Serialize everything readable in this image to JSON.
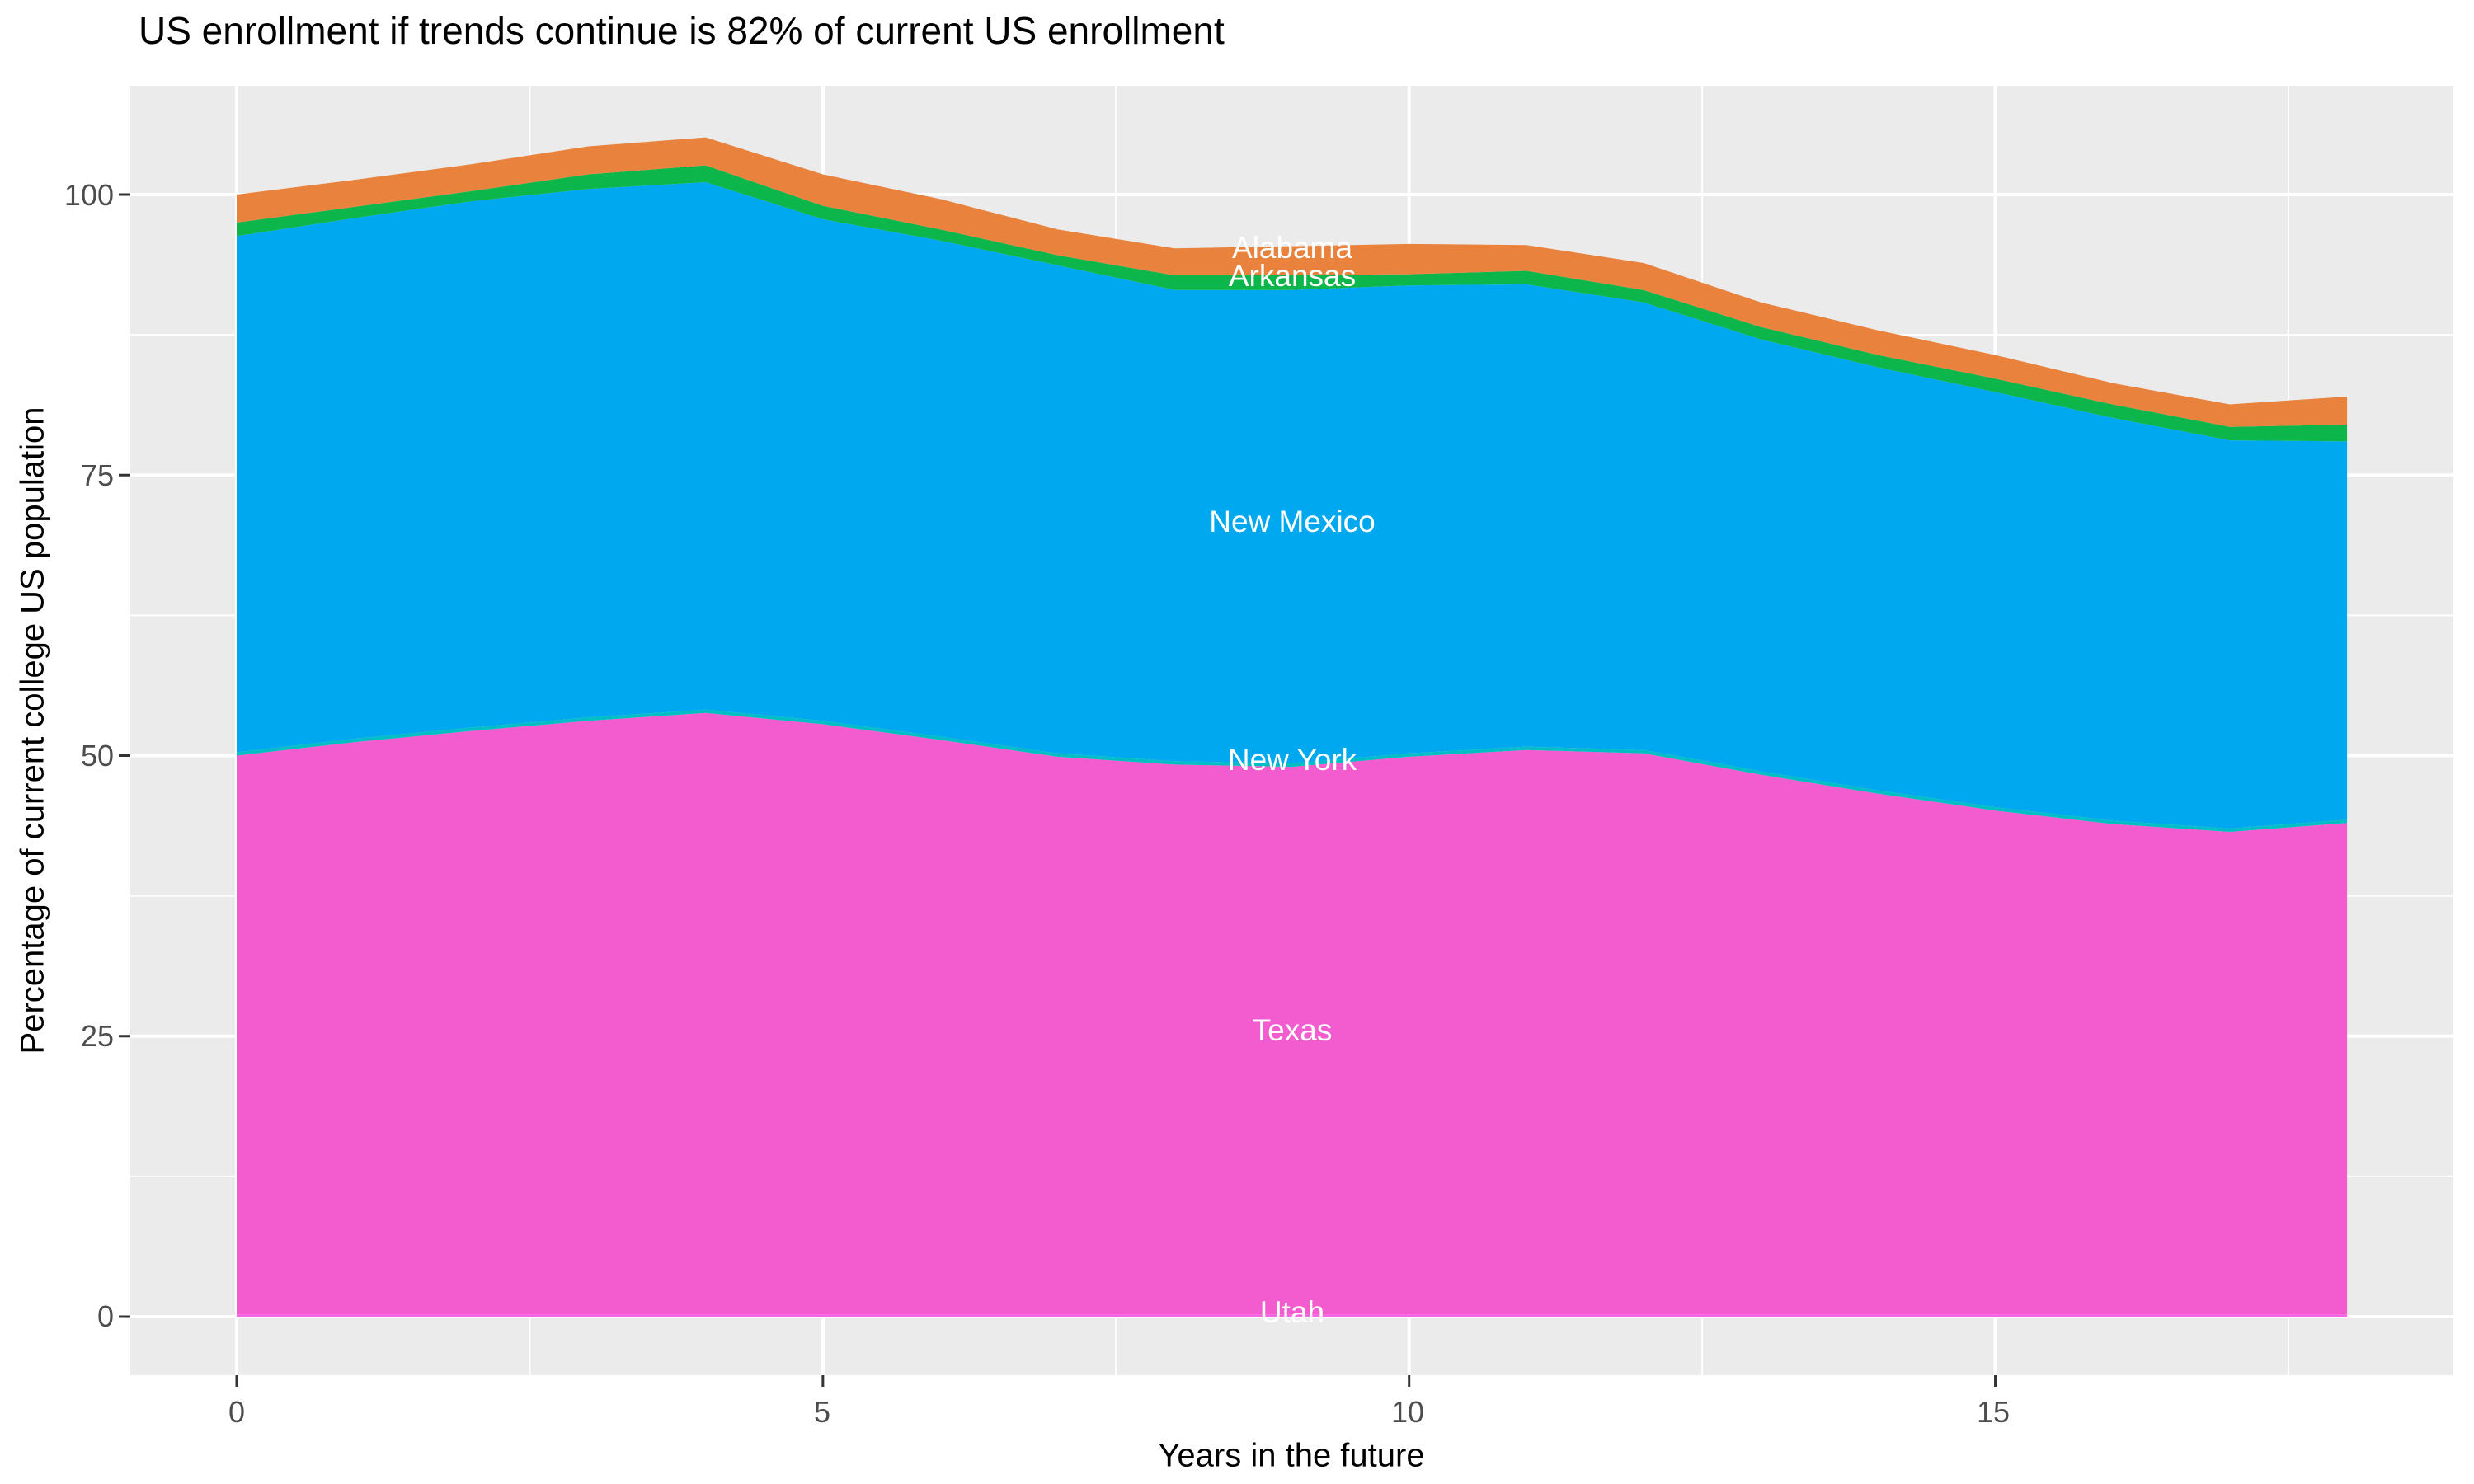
{
  "title": "US enrollment if trends continue is 82% of current US enrollment",
  "axes": {
    "x": {
      "title": "Years in the future",
      "tick_labels": [
        "0",
        "5",
        "10",
        "15"
      ]
    },
    "y": {
      "title": "Percentage of current college US population",
      "tick_labels": [
        "100",
        "75",
        "50",
        "25",
        "0"
      ]
    }
  },
  "colors": {
    "panel_background": "#EBEBEB",
    "gridline": "#FFFFFF",
    "tick_mark": "#333333",
    "tick_text": "#4D4D4D",
    "alabama": "#E8823D",
    "arkansas": "#0CB64B",
    "new_mexico": "#00A8F0",
    "new_york": "#00BFC4",
    "texas": "#F25CCE",
    "utah": "#F564E3"
  },
  "chart_data": {
    "type": "area",
    "stacked": true,
    "title": "US enrollment if trends continue is 82% of current US enrollment",
    "xlabel": "Years in the future",
    "ylabel": "Percentage of current college US population",
    "x": [
      0,
      1,
      2,
      3,
      4,
      5,
      6,
      7,
      8,
      9,
      10,
      11,
      12,
      13,
      14,
      15,
      16,
      17,
      18
    ],
    "x_ticks": [
      0,
      5,
      10,
      15
    ],
    "x_minor_ticks": [
      2.5,
      7.5,
      12.5,
      17.5
    ],
    "y_ticks": [
      0,
      25,
      50,
      75,
      100
    ],
    "y_minor_ticks": [
      12.5,
      37.5,
      62.5,
      87.5
    ],
    "xlim": [
      -0.9,
      18.9
    ],
    "ylim": [
      -5.2,
      109.7
    ],
    "grid": true,
    "legend_position": "none",
    "series": [
      {
        "name": "Utah",
        "color": "#F564E3",
        "values": [
          0.2,
          0.2,
          0.2,
          0.2,
          0.2,
          0.2,
          0.2,
          0.2,
          0.2,
          0.2,
          0.2,
          0.2,
          0.2,
          0.2,
          0.2,
          0.2,
          0.2,
          0.2,
          0.2
        ]
      },
      {
        "name": "Texas",
        "color": "#F25CCE",
        "values": [
          49.8,
          51.0,
          52.0,
          52.9,
          53.6,
          52.6,
          51.2,
          49.7,
          49.0,
          48.8,
          49.7,
          50.3,
          50.0,
          48.1,
          46.4,
          44.9,
          43.7,
          43.0,
          43.8
        ]
      },
      {
        "name": "New York",
        "color": "#00BFC4",
        "values": [
          0.3,
          0.3,
          0.3,
          0.3,
          0.3,
          0.3,
          0.3,
          0.3,
          0.3,
          0.3,
          0.3,
          0.3,
          0.3,
          0.3,
          0.3,
          0.3,
          0.3,
          0.3,
          0.3
        ]
      },
      {
        "name": "New Mexico",
        "color": "#00A8F0",
        "values": [
          46.0,
          46.4,
          46.9,
          47.1,
          47.0,
          44.7,
          44.2,
          43.5,
          42.0,
          42.2,
          41.7,
          41.2,
          39.9,
          38.5,
          37.7,
          37.0,
          35.9,
          34.6,
          33.7
        ]
      },
      {
        "name": "Arkansas",
        "color": "#0CB64B",
        "values": [
          1.2,
          1.0,
          0.9,
          1.3,
          1.5,
          1.2,
          1.0,
          0.9,
          1.3,
          1.3,
          1.0,
          1.2,
          1.1,
          1.1,
          1.1,
          1.2,
          1.2,
          1.2,
          1.5
        ]
      },
      {
        "name": "Alabama",
        "color": "#E8823D",
        "values": [
          2.5,
          2.4,
          2.4,
          2.5,
          2.5,
          2.8,
          2.7,
          2.3,
          2.4,
          2.6,
          2.7,
          2.3,
          2.4,
          2.2,
          2.2,
          2.1,
          1.9,
          2.0,
          2.5
        ]
      }
    ],
    "totals_percent": {
      "year_0": 100.0,
      "year_18": 82.0
    },
    "area_labels": [
      {
        "text": "Alabama",
        "x": 9,
        "v": 95.2
      },
      {
        "text": "Arkansas",
        "x": 9,
        "v": 92.7
      },
      {
        "text": "New Mexico",
        "x": 9,
        "v": 70.8
      },
      {
        "text": "New York",
        "x": 9,
        "v": 49.6
      },
      {
        "text": "Texas",
        "x": 9,
        "v": 25.5
      },
      {
        "text": "Utah",
        "x": 9,
        "v": 0.4
      }
    ]
  }
}
